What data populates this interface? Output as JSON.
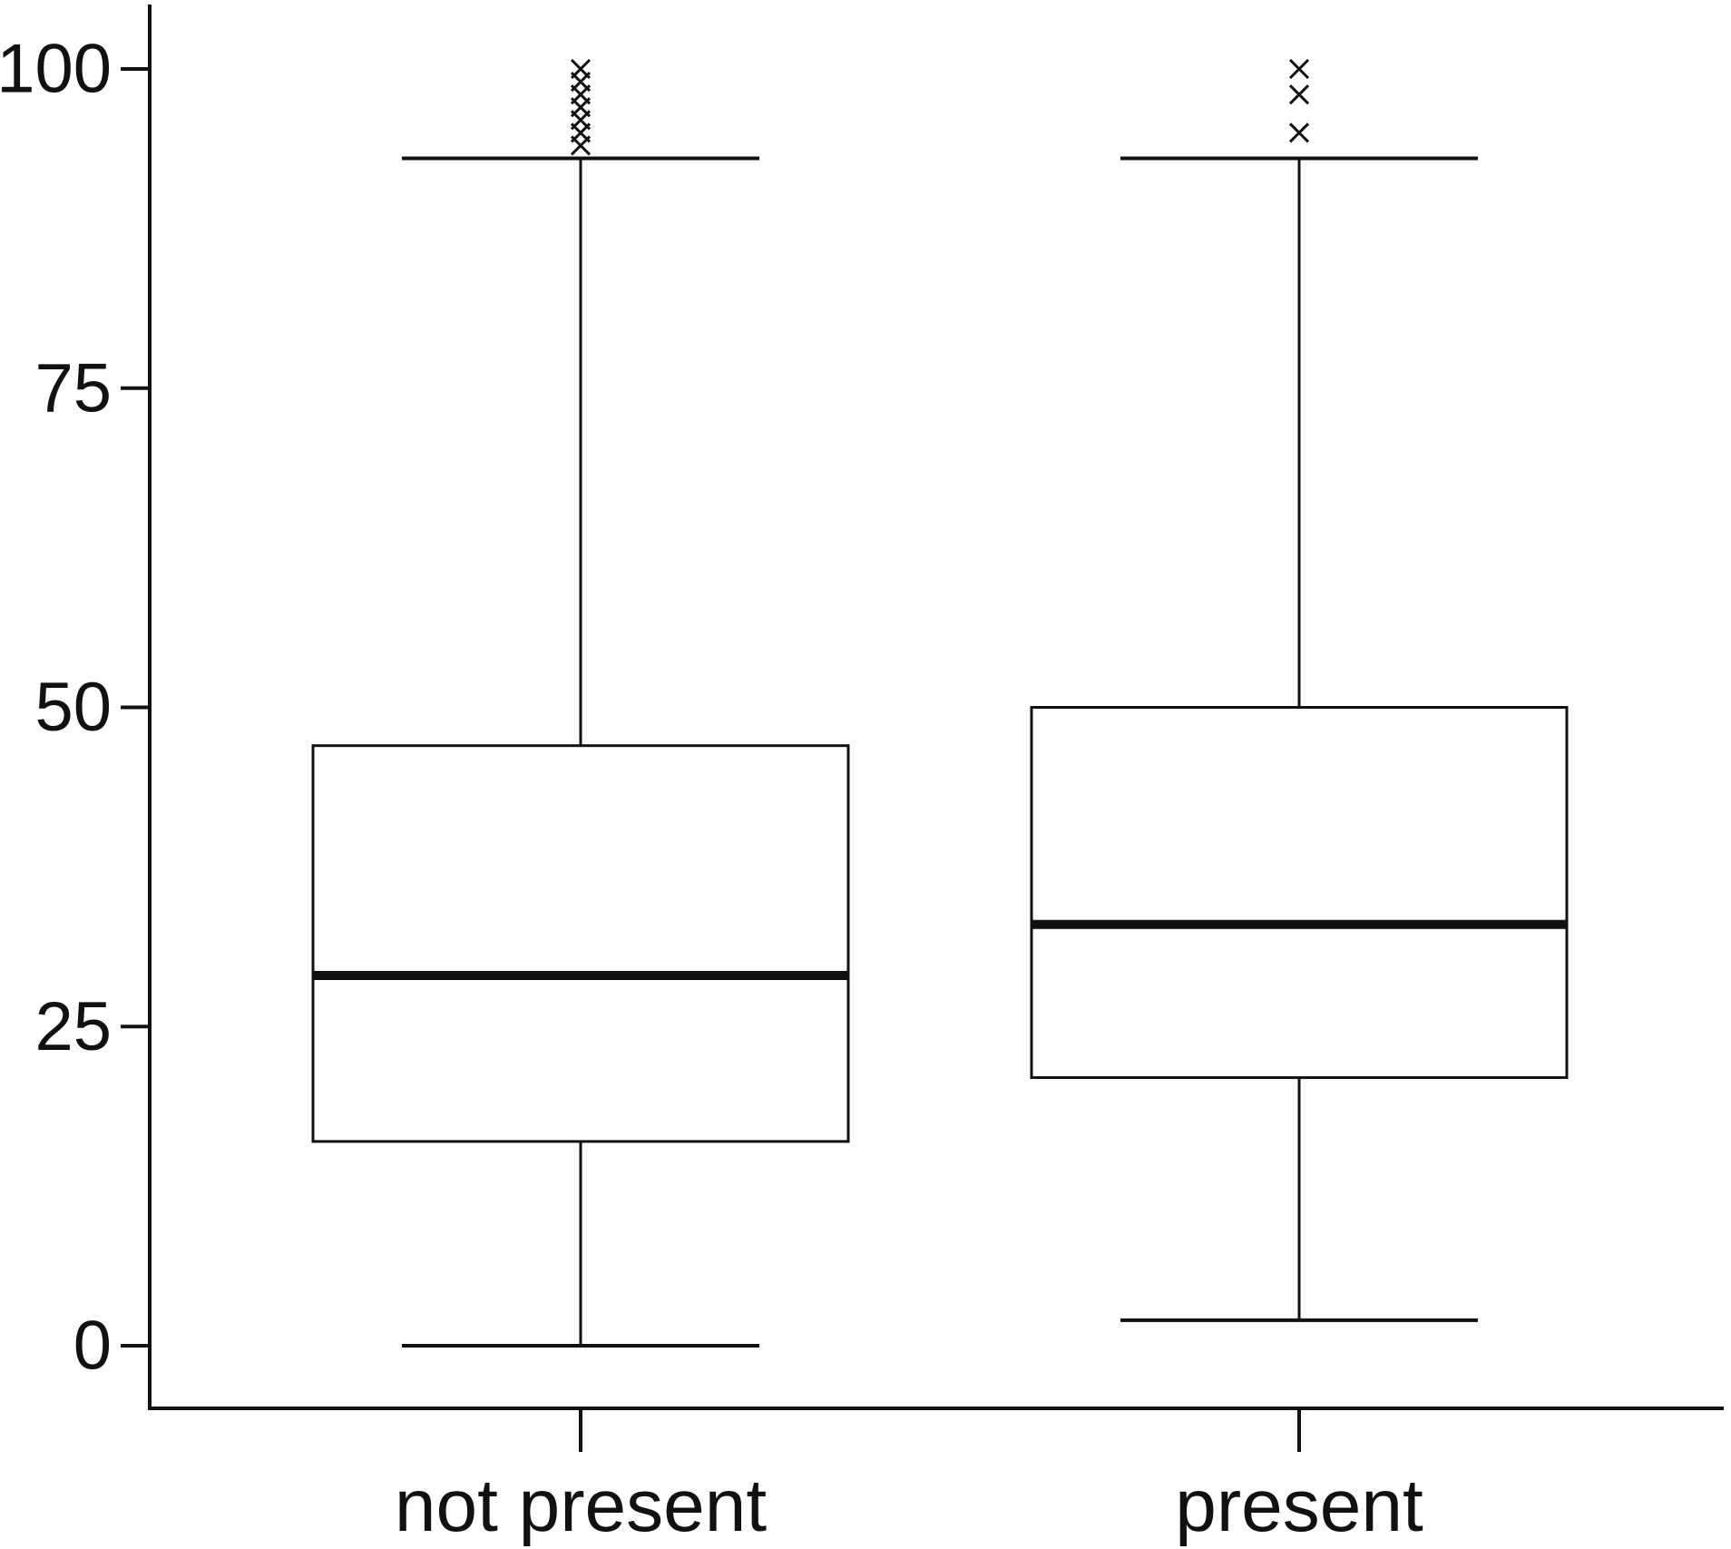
{
  "chart_data": {
    "type": "box",
    "title": "",
    "xlabel": "",
    "ylabel": "",
    "ylim": [
      -5,
      105
    ],
    "yticks": [
      0,
      25,
      50,
      75,
      100
    ],
    "ytick_labels": [
      "0",
      "25",
      "50",
      "75",
      "100"
    ],
    "grid": false,
    "legend": "none",
    "categories": [
      "not present",
      "present"
    ],
    "boxes": [
      {
        "category": "not present",
        "whisker_low": 0,
        "q1": 16,
        "median": 29,
        "q3": 47,
        "whisker_high": 93,
        "outliers": [
          94,
          95,
          96,
          97,
          98,
          99,
          100
        ]
      },
      {
        "category": "present",
        "whisker_low": 2,
        "q1": 21,
        "median": 33,
        "q3": 50,
        "whisker_high": 93,
        "outliers": [
          95,
          98,
          100
        ]
      }
    ],
    "colors": {
      "stroke": "#111111",
      "box_fill": "#ffffff"
    }
  }
}
